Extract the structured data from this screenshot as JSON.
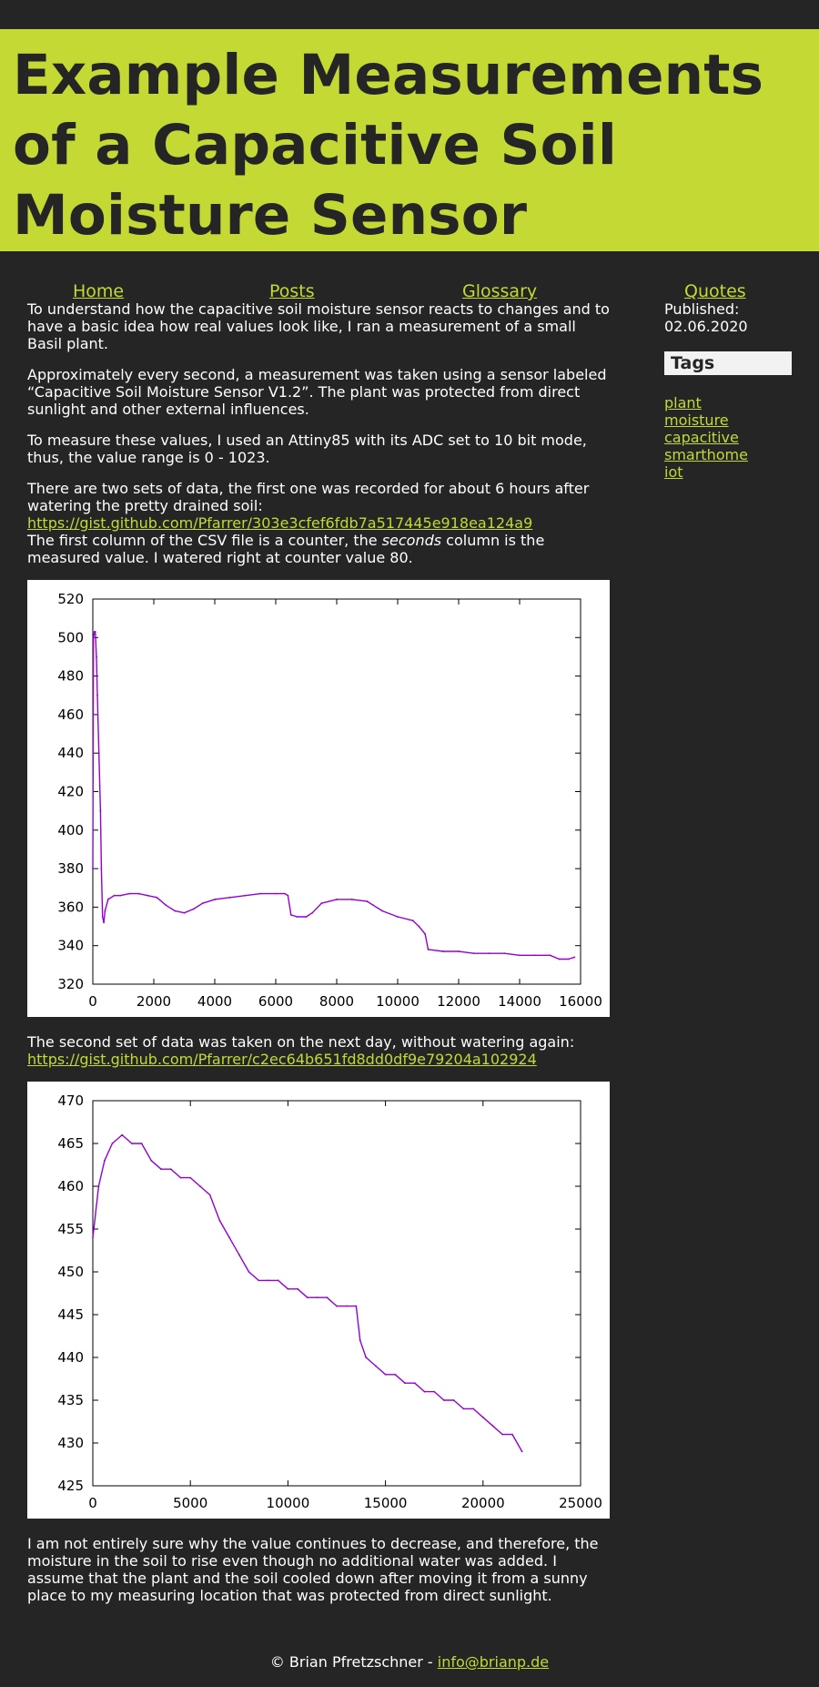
{
  "page": {
    "title": "Example Measurements of a Capacitive Soil Moisture Sensor"
  },
  "nav": {
    "home": "Home",
    "posts": "Posts",
    "glossary": "Glossary",
    "quotes": "Quotes"
  },
  "article": {
    "p1": "To understand how the capacitive soil moisture sensor reacts to changes and to have a basic idea how real values look like, I ran a measurement of a small Basil plant.",
    "p2": "Approximately every second, a measurement was taken using a sensor labeled “Capacitive Soil Moisture Sensor V1.2”. The plant was protected from direct sunlight and other external influences.",
    "p3": "To measure these values, I used an Attiny85 with its ADC set to 10 bit mode, thus, the value range is 0 - 1023.",
    "p4": "There are two sets of data, the first one was recorded for about 6 hours after watering the pretty drained soil:",
    "link1": "https://gist.github.com/Pfarrer/303e3cfef6fdb7a517445e918ea124a9",
    "p5a": "The first column of the CSV file is a counter, the ",
    "p5em": "seconds",
    "p5b": " column is the measured value. I watered right at counter value 80.",
    "p6": "The second set of data was taken on the next day, without watering again:",
    "link2": "https://gist.github.com/Pfarrer/c2ec64b651fd8dd0df9e79204a102924",
    "p7": "I am not entirely sure why the value continues to decrease, and therefore, the moisture in the soil to rise even though no additional water was added. I assume that the plant and the soil cooled down after moving it from a sunny place to my measuring location that was protected from direct sunlight."
  },
  "sidebar": {
    "published_label": "Published:",
    "published_date": "02.06.2020",
    "tags_title": "Tags",
    "tags": [
      "plant",
      "moisture",
      "capacitive",
      "smarthome",
      "iot"
    ]
  },
  "footer": {
    "text": "© Brian Pfretzschner - ",
    "email": "info@brianp.de"
  },
  "colors": {
    "accent": "#c4d934",
    "background": "#252525",
    "series": "#9400d3"
  },
  "chart_data": [
    {
      "type": "line",
      "title": "",
      "xlabel": "",
      "ylabel": "",
      "xlim": [
        0,
        16000
      ],
      "ylim": [
        320,
        520
      ],
      "xticks": [
        0,
        2000,
        4000,
        6000,
        8000,
        10000,
        12000,
        14000,
        16000
      ],
      "yticks": [
        320,
        340,
        360,
        380,
        400,
        420,
        440,
        460,
        480,
        500,
        520
      ],
      "grid": false,
      "series": [
        {
          "x": [
            0,
            20,
            50,
            80,
            120,
            150,
            200,
            250,
            280,
            320,
            360,
            400,
            500,
            700,
            900,
            1200,
            1500,
            1800,
            2100,
            2400,
            2700,
            3000,
            3300,
            3600,
            4000,
            4500,
            5000,
            5500,
            6000,
            6300,
            6400,
            6500,
            6700,
            7000,
            7200,
            7500,
            8000,
            8500,
            9000,
            9200,
            9500,
            10000,
            10500,
            10700,
            10900,
            11000,
            11500,
            12000,
            12500,
            13000,
            13500,
            14000,
            14500,
            15000,
            15300,
            15600,
            15800
          ],
          "y": [
            380,
            500,
            503,
            503,
            490,
            470,
            440,
            410,
            380,
            355,
            352,
            358,
            364,
            366,
            366,
            367,
            367,
            366,
            365,
            361,
            358,
            357,
            359,
            362,
            364,
            365,
            366,
            367,
            367,
            367,
            366,
            356,
            355,
            355,
            357,
            362,
            364,
            364,
            363,
            361,
            358,
            355,
            353,
            350,
            346,
            338,
            337,
            337,
            336,
            336,
            336,
            335,
            335,
            335,
            333,
            333,
            334
          ]
        }
      ]
    },
    {
      "type": "line",
      "title": "",
      "xlabel": "",
      "ylabel": "",
      "xlim": [
        0,
        25000
      ],
      "ylim": [
        425,
        470
      ],
      "xticks": [
        0,
        5000,
        10000,
        15000,
        20000,
        25000
      ],
      "yticks": [
        425,
        430,
        435,
        440,
        445,
        450,
        455,
        460,
        465,
        470
      ],
      "grid": false,
      "series": [
        {
          "x": [
            0,
            300,
            600,
            1000,
            1500,
            2000,
            2500,
            3000,
            3500,
            4000,
            4500,
            5000,
            5500,
            6000,
            6500,
            7000,
            7500,
            8000,
            8500,
            9000,
            9500,
            10000,
            10500,
            11000,
            11500,
            12000,
            12500,
            13000,
            13500,
            13700,
            14000,
            14500,
            15000,
            15500,
            16000,
            16500,
            17000,
            17500,
            18000,
            18500,
            19000,
            19500,
            20000,
            20500,
            21000,
            21500,
            22000
          ],
          "y": [
            454,
            460,
            463,
            465,
            466,
            465,
            465,
            463,
            462,
            462,
            461,
            461,
            460,
            459,
            456,
            454,
            452,
            450,
            449,
            449,
            449,
            448,
            448,
            447,
            447,
            447,
            446,
            446,
            446,
            442,
            440,
            439,
            438,
            438,
            437,
            437,
            436,
            436,
            435,
            435,
            434,
            434,
            433,
            432,
            431,
            431,
            429
          ]
        }
      ]
    }
  ]
}
